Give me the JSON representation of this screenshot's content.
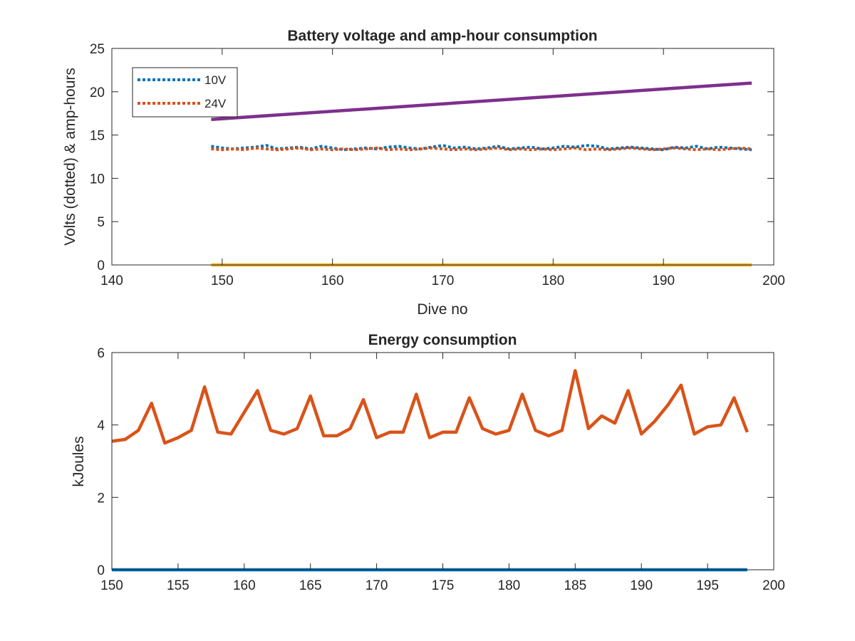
{
  "chart_data": [
    {
      "type": "line",
      "title": "Battery voltage and amp-hour consumption",
      "xlabel": "Dive no",
      "ylabel": "Volts (dotted) & amp-hours",
      "xlim": [
        140,
        200
      ],
      "ylim": [
        0,
        25
      ],
      "xticks": [
        140,
        150,
        160,
        170,
        180,
        190,
        200
      ],
      "yticks": [
        0,
        5,
        10,
        15,
        20,
        25
      ],
      "grid": false,
      "legend_position": "top-left",
      "series": [
        {
          "name": "10V",
          "style": "dotted",
          "color": "#0072BD",
          "x": [
            149,
            150,
            151,
            152,
            153,
            154,
            155,
            156,
            157,
            158,
            159,
            160,
            161,
            162,
            163,
            164,
            165,
            166,
            167,
            168,
            169,
            170,
            171,
            172,
            173,
            174,
            175,
            176,
            177,
            178,
            179,
            180,
            181,
            182,
            183,
            184,
            185,
            186,
            187,
            188,
            189,
            190,
            191,
            192,
            193,
            194,
            195,
            196,
            197,
            198
          ],
          "values": [
            13.7,
            13.5,
            13.4,
            13.5,
            13.6,
            13.8,
            13.4,
            13.5,
            13.6,
            13.4,
            13.7,
            13.5,
            13.3,
            13.4,
            13.5,
            13.4,
            13.6,
            13.7,
            13.5,
            13.4,
            13.6,
            13.8,
            13.5,
            13.6,
            13.4,
            13.5,
            13.7,
            13.4,
            13.5,
            13.6,
            13.4,
            13.5,
            13.7,
            13.6,
            13.8,
            13.7,
            13.4,
            13.5,
            13.6,
            13.5,
            13.4,
            13.3,
            13.6,
            13.5,
            13.7,
            13.4,
            13.6,
            13.5,
            13.4,
            13.3
          ]
        },
        {
          "name": "24V",
          "style": "dotted",
          "color": "#D95319",
          "x": [
            149,
            150,
            151,
            152,
            153,
            154,
            155,
            156,
            157,
            158,
            159,
            160,
            161,
            162,
            163,
            164,
            165,
            166,
            167,
            168,
            169,
            170,
            171,
            172,
            173,
            174,
            175,
            176,
            177,
            178,
            179,
            180,
            181,
            182,
            183,
            184,
            185,
            186,
            187,
            188,
            189,
            190,
            191,
            192,
            193,
            194,
            195,
            196,
            197,
            198
          ],
          "values": [
            13.4,
            13.3,
            13.4,
            13.3,
            13.5,
            13.4,
            13.3,
            13.4,
            13.5,
            13.3,
            13.4,
            13.3,
            13.4,
            13.3,
            13.4,
            13.5,
            13.3,
            13.4,
            13.3,
            13.4,
            13.5,
            13.4,
            13.3,
            13.4,
            13.3,
            13.4,
            13.5,
            13.3,
            13.4,
            13.3,
            13.4,
            13.3,
            13.4,
            13.5,
            13.3,
            13.4,
            13.3,
            13.4,
            13.5,
            13.4,
            13.3,
            13.4,
            13.5,
            13.4,
            13.3,
            13.4,
            13.3,
            13.4,
            13.5,
            13.4
          ]
        },
        {
          "style": "solid",
          "color": "#7E2F8E",
          "x": [
            149,
            198
          ],
          "values": [
            16.8,
            21.0
          ]
        },
        {
          "style": "solid",
          "color": "#EDB120",
          "x": [
            149,
            198
          ],
          "values": [
            0,
            0
          ]
        }
      ]
    },
    {
      "type": "line",
      "title": "Energy consumption",
      "xlabel": "",
      "ylabel": "kJoules",
      "xlim": [
        150,
        200
      ],
      "ylim": [
        0,
        6
      ],
      "xticks": [
        150,
        155,
        160,
        165,
        170,
        175,
        180,
        185,
        190,
        195,
        200
      ],
      "yticks": [
        0,
        2,
        4,
        6
      ],
      "grid": false,
      "series": [
        {
          "style": "solid",
          "color": "#D95319",
          "x": [
            150,
            151,
            152,
            153,
            154,
            155,
            156,
            157,
            158,
            159,
            160,
            161,
            162,
            163,
            164,
            165,
            166,
            167,
            168,
            169,
            170,
            171,
            172,
            173,
            174,
            175,
            176,
            177,
            178,
            179,
            180,
            181,
            182,
            183,
            184,
            185,
            186,
            187,
            188,
            189,
            190,
            191,
            192,
            193,
            194,
            195,
            196,
            197,
            198
          ],
          "values": [
            3.55,
            3.6,
            3.85,
            4.6,
            3.5,
            3.65,
            3.85,
            5.05,
            3.8,
            3.75,
            4.35,
            4.95,
            3.85,
            3.75,
            3.9,
            4.8,
            3.7,
            3.7,
            3.9,
            4.7,
            3.65,
            3.8,
            3.8,
            4.85,
            3.65,
            3.8,
            3.8,
            4.75,
            3.9,
            3.75,
            3.85,
            4.85,
            3.85,
            3.7,
            3.85,
            5.5,
            3.9,
            4.25,
            4.05,
            4.95,
            3.75,
            4.1,
            4.55,
            5.1,
            3.75,
            3.95,
            4.0,
            4.75,
            3.8
          ]
        },
        {
          "style": "solid",
          "color": "#0072BD",
          "x": [
            150,
            198
          ],
          "values": [
            0,
            0
          ]
        }
      ]
    }
  ]
}
